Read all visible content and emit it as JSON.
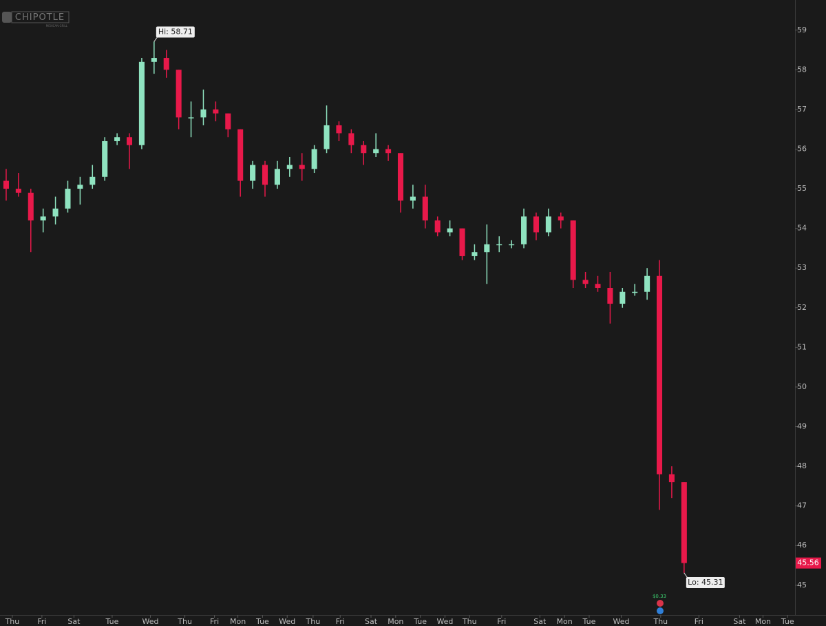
{
  "chart_data": {
    "type": "candlestick",
    "logo": {
      "title": "CHIPOTLE",
      "subtitle": "MEXICAN GRILL"
    },
    "open": [
      55.2,
      55.0,
      54.9,
      54.2,
      54.3,
      54.5,
      55.0,
      55.1,
      55.3,
      56.2,
      56.3,
      56.1,
      58.2,
      58.3,
      58.0,
      56.8,
      56.8,
      57.0,
      56.9,
      56.5,
      55.2,
      55.6,
      55.1,
      55.5,
      55.6,
      55.5,
      56.0,
      56.6,
      56.4,
      56.1,
      55.9,
      56.0,
      55.9,
      54.7,
      54.8,
      54.2,
      53.9,
      54.0,
      53.3,
      53.4,
      53.6,
      53.6,
      53.6,
      54.3,
      53.9,
      54.3,
      54.2,
      52.7,
      52.6,
      52.5,
      52.1,
      52.4,
      52.4,
      52.8,
      47.8,
      47.6
    ],
    "high": [
      55.5,
      55.4,
      55.0,
      54.5,
      54.8,
      55.2,
      55.3,
      55.6,
      56.3,
      56.4,
      56.4,
      58.3,
      58.71,
      58.5,
      58.0,
      57.2,
      57.5,
      57.2,
      56.9,
      56.5,
      55.7,
      55.7,
      55.7,
      55.8,
      55.9,
      56.1,
      57.1,
      56.7,
      56.5,
      56.2,
      56.4,
      56.1,
      55.9,
      55.1,
      55.1,
      54.3,
      54.2,
      54.0,
      53.6,
      54.1,
      53.8,
      53.7,
      54.5,
      54.4,
      54.5,
      54.4,
      54.2,
      52.9,
      52.8,
      52.9,
      52.5,
      52.6,
      53.0,
      53.2,
      48.0,
      47.6
    ],
    "low": [
      54.7,
      54.8,
      53.4,
      53.9,
      54.1,
      54.4,
      54.6,
      55.0,
      55.2,
      56.1,
      55.5,
      56.0,
      57.9,
      57.8,
      56.5,
      56.3,
      56.6,
      56.7,
      56.3,
      54.8,
      55.0,
      54.8,
      55.0,
      55.3,
      55.2,
      55.4,
      55.9,
      56.2,
      55.9,
      55.6,
      55.8,
      55.7,
      54.4,
      54.5,
      54.0,
      53.8,
      53.8,
      53.2,
      53.2,
      52.6,
      53.4,
      53.5,
      53.5,
      53.7,
      53.8,
      54.0,
      52.5,
      52.5,
      52.4,
      51.6,
      52.0,
      52.3,
      52.2,
      46.9,
      47.2,
      45.31
    ],
    "close": [
      55.0,
      54.9,
      54.2,
      54.3,
      54.5,
      55.0,
      55.1,
      55.3,
      56.2,
      56.3,
      56.1,
      58.2,
      58.3,
      58.0,
      56.8,
      56.8,
      57.0,
      56.9,
      56.5,
      55.2,
      55.6,
      55.1,
      55.5,
      55.6,
      55.5,
      56.0,
      56.6,
      56.4,
      56.1,
      55.9,
      56.0,
      55.9,
      54.7,
      54.8,
      54.2,
      53.9,
      54.0,
      53.3,
      53.4,
      53.6,
      53.6,
      53.6,
      54.3,
      53.9,
      54.3,
      54.2,
      52.7,
      52.6,
      52.5,
      52.1,
      52.4,
      52.4,
      52.8,
      47.8,
      47.6,
      45.56
    ],
    "up_color": "#8fe3c0",
    "down_color": "#e8194a",
    "high_label": {
      "value": 58.71,
      "label": "Hi: 58.71"
    },
    "low_label": {
      "value": 45.31,
      "label": "Lo: 45.31"
    },
    "last_price": 45.56,
    "dividend": "$0.33",
    "ylim": [
      44.25,
      59.76
    ],
    "yticks": [
      45,
      46,
      47,
      48,
      49,
      50,
      51,
      52,
      53,
      54,
      55,
      56,
      57,
      58,
      59
    ],
    "xlim": [
      0,
      64.5
    ],
    "xticks": [
      {
        "value": 1.0,
        "label": "Thu"
      },
      {
        "value": 3.4,
        "label": "Fri"
      },
      {
        "value": 6.0,
        "label": "Sat"
      },
      {
        "value": 9.1,
        "label": "Tue"
      },
      {
        "value": 12.2,
        "label": "Wed"
      },
      {
        "value": 15.0,
        "label": "Thu"
      },
      {
        "value": 17.4,
        "label": "Fri"
      },
      {
        "value": 19.3,
        "label": "Mon"
      },
      {
        "value": 21.3,
        "label": "Tue"
      },
      {
        "value": 23.3,
        "label": "Wed"
      },
      {
        "value": 25.4,
        "label": "Thu"
      },
      {
        "value": 27.6,
        "label": "Fri"
      },
      {
        "value": 30.1,
        "label": "Sat"
      },
      {
        "value": 32.1,
        "label": "Mon"
      },
      {
        "value": 34.1,
        "label": "Tue"
      },
      {
        "value": 36.1,
        "label": "Wed"
      },
      {
        "value": 38.1,
        "label": "Thu"
      },
      {
        "value": 40.7,
        "label": "Fri"
      },
      {
        "value": 43.8,
        "label": "Sat"
      },
      {
        "value": 45.8,
        "label": "Mon"
      },
      {
        "value": 47.8,
        "label": "Tue"
      },
      {
        "value": 50.4,
        "label": "Wed"
      },
      {
        "value": 53.6,
        "label": "Thu"
      },
      {
        "value": 56.7,
        "label": "Fri"
      },
      {
        "value": 60.0,
        "label": "Sat"
      },
      {
        "value": 61.9,
        "label": "Mon"
      },
      {
        "value": 63.9,
        "label": "Tue"
      }
    ]
  }
}
